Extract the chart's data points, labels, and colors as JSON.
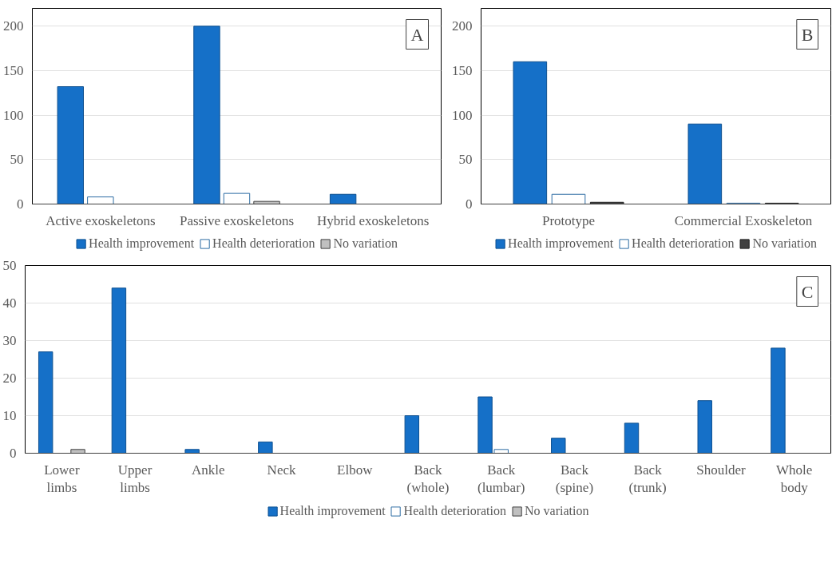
{
  "chart_data": [
    {
      "type": "bar",
      "annotations": [
        "A"
      ],
      "categories": [
        "Active exoskeletons",
        "Passive exoskeletons",
        "Hybrid exoskeletons"
      ],
      "series": [
        {
          "name": "Health improvement",
          "color": "#1570c8",
          "values": [
            132,
            200,
            11
          ]
        },
        {
          "name": "Health deterioration",
          "color": "#ffffff",
          "values": [
            8,
            12,
            0
          ]
        },
        {
          "name": "No variation",
          "color": "#c0c0c0",
          "values": [
            0,
            3,
            0
          ]
        }
      ],
      "ylim": [
        0,
        220
      ],
      "yticks": [
        0,
        50,
        100,
        150,
        200
      ],
      "grid": "y",
      "legend": "bottom"
    },
    {
      "type": "bar",
      "annotations": [
        "B"
      ],
      "categories": [
        "Prototype",
        "Commercial Exoskeleton"
      ],
      "series": [
        {
          "name": "Health improvement",
          "color": "#1570c8",
          "values": [
            160,
            90
          ]
        },
        {
          "name": "Health deterioration",
          "color": "#ffffff",
          "values": [
            11,
            1
          ]
        },
        {
          "name": "No variation",
          "color": "#404040",
          "values": [
            2,
            1
          ]
        }
      ],
      "ylim": [
        0,
        220
      ],
      "yticks": [
        0,
        50,
        100,
        150,
        200
      ],
      "grid": "y",
      "legend": "bottom"
    },
    {
      "type": "bar",
      "annotations": [
        "C"
      ],
      "categories": [
        "Lower limbs",
        "Upper limbs",
        "Ankle",
        "Neck",
        "Elbow",
        "Back (whole)",
        "Back (lumbar)",
        "Back (spine)",
        "Back (trunk)",
        "Shoulder",
        "Whole body"
      ],
      "series": [
        {
          "name": "Health improvement",
          "color": "#1570c8",
          "values": [
            27,
            44,
            1,
            3,
            0,
            10,
            15,
            4,
            8,
            14,
            28
          ]
        },
        {
          "name": "Health deterioration",
          "color": "#ffffff",
          "values": [
            0,
            0,
            0,
            0,
            0,
            0,
            1,
            0,
            0,
            0,
            0
          ]
        },
        {
          "name": "No variation",
          "color": "#c0c0c0",
          "values": [
            1,
            0,
            0,
            0,
            0,
            0,
            0,
            0,
            0,
            0,
            0
          ]
        }
      ],
      "ylim": [
        0,
        50
      ],
      "yticks": [
        0,
        10,
        20,
        30,
        40,
        50
      ],
      "grid": "y",
      "legend": "bottom"
    }
  ]
}
